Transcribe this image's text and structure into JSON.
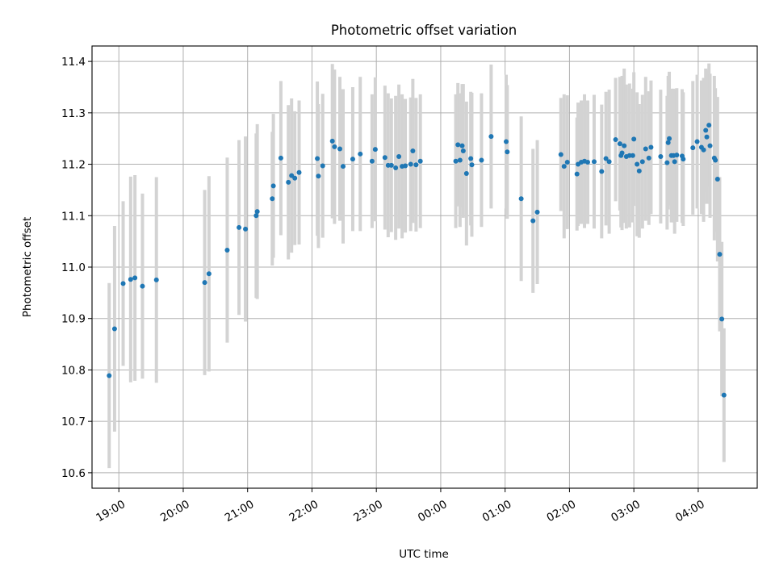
{
  "chart_data": {
    "type": "scatter",
    "title": "Photometric offset variation",
    "xlabel": "UTC time",
    "ylabel": "Photometric offset",
    "x_unit": "UTC",
    "x_axis_start_date": "2000-01-01",
    "xlim": [
      "2000-01-01T18:35",
      "2000-01-02T04:55"
    ],
    "ylim": [
      10.57,
      11.43
    ],
    "xticks": [
      "2000-01-01T19:00",
      "2000-01-01T20:00",
      "2000-01-01T21:00",
      "2000-01-01T22:00",
      "2000-01-01T23:00",
      "2000-01-02T00:00",
      "2000-01-02T01:00",
      "2000-01-02T02:00",
      "2000-01-02T03:00",
      "2000-01-02T04:00"
    ],
    "xtick_labels": [
      "19:00",
      "20:00",
      "21:00",
      "22:00",
      "23:00",
      "00:00",
      "01:00",
      "02:00",
      "03:00",
      "04:00"
    ],
    "yticks": [
      10.6,
      10.7,
      10.8,
      10.9,
      11.0,
      11.1,
      11.2,
      11.3,
      11.4
    ],
    "ytick_labels": [
      "10.6",
      "10.7",
      "10.8",
      "10.9",
      "11.0",
      "11.1",
      "11.2",
      "11.3",
      "11.4"
    ],
    "grid": true,
    "marker_color": "#1f77b4",
    "errorbar_color": "#d3d3d3",
    "points": [
      [
        "18:51",
        10.789,
        0.18
      ],
      [
        "18:56",
        10.88,
        0.2
      ],
      [
        "19:04",
        10.968,
        0.16
      ],
      [
        "19:11",
        10.976,
        0.2
      ],
      [
        "19:15",
        10.979,
        0.2
      ],
      [
        "19:22",
        10.963,
        0.18
      ],
      [
        "19:35",
        10.975,
        0.2
      ],
      [
        "20:20",
        10.97,
        0.18
      ],
      [
        "20:24",
        10.987,
        0.19
      ],
      [
        "20:41",
        11.033,
        0.18
      ],
      [
        "20:52",
        11.077,
        0.17
      ],
      [
        "20:58",
        11.074,
        0.18
      ],
      [
        "21:08",
        11.1,
        0.16
      ],
      [
        "21:09",
        11.108,
        0.17
      ],
      [
        "21:23",
        11.133,
        0.13
      ],
      [
        "21:24",
        11.158,
        0.14
      ],
      [
        "21:31",
        11.212,
        0.15
      ],
      [
        "21:38",
        11.165,
        0.15
      ],
      [
        "21:41",
        11.178,
        0.15
      ],
      [
        "21:44",
        11.173,
        0.13
      ],
      [
        "21:48",
        11.184,
        0.14
      ],
      [
        "22:05",
        11.211,
        0.15
      ],
      [
        "22:06",
        11.177,
        0.14
      ],
      [
        "22:10",
        11.197,
        0.14
      ],
      [
        "22:19",
        11.245,
        0.15
      ],
      [
        "22:21",
        11.234,
        0.15
      ],
      [
        "22:26",
        11.23,
        0.14
      ],
      [
        "22:29",
        11.196,
        0.15
      ],
      [
        "22:38",
        11.21,
        0.14
      ],
      [
        "22:45",
        11.22,
        0.15
      ],
      [
        "22:56",
        11.206,
        0.13
      ],
      [
        "22:59",
        11.229,
        0.14
      ],
      [
        "23:08",
        11.213,
        0.14
      ],
      [
        "23:11",
        11.198,
        0.14
      ],
      [
        "23:14",
        11.198,
        0.13
      ],
      [
        "23:18",
        11.193,
        0.14
      ],
      [
        "23:21",
        11.215,
        0.14
      ],
      [
        "23:24",
        11.196,
        0.14
      ],
      [
        "23:27",
        11.197,
        0.13
      ],
      [
        "23:32",
        11.2,
        0.13
      ],
      [
        "23:34",
        11.226,
        0.14
      ],
      [
        "23:37",
        11.199,
        0.13
      ],
      [
        "23:41",
        11.206,
        0.13
      ],
      [
        "00:14",
        11.206,
        0.13
      ],
      [
        "00:16",
        11.238,
        0.12
      ],
      [
        "00:18",
        11.208,
        0.13
      ],
      [
        "00:20",
        11.236,
        0.12
      ],
      [
        "00:21",
        11.226,
        0.13
      ],
      [
        "00:24",
        11.182,
        0.14
      ],
      [
        "00:28",
        11.211,
        0.13
      ],
      [
        "00:29",
        11.199,
        0.14
      ],
      [
        "00:38",
        11.208,
        0.13
      ],
      [
        "00:47",
        11.254,
        0.14
      ],
      [
        "01:01",
        11.244,
        0.13
      ],
      [
        "01:02",
        11.224,
        0.13
      ],
      [
        "01:15",
        11.133,
        0.16
      ],
      [
        "01:26",
        11.09,
        0.14
      ],
      [
        "01:30",
        11.107,
        0.14
      ],
      [
        "01:52",
        11.219,
        0.11
      ],
      [
        "01:55",
        11.196,
        0.14
      ],
      [
        "01:58",
        11.204,
        0.13
      ],
      [
        "02:07",
        11.181,
        0.11
      ],
      [
        "02:08",
        11.2,
        0.12
      ],
      [
        "02:11",
        11.204,
        0.12
      ],
      [
        "02:14",
        11.206,
        0.13
      ],
      [
        "02:17",
        11.204,
        0.12
      ],
      [
        "02:23",
        11.205,
        0.13
      ],
      [
        "02:30",
        11.186,
        0.13
      ],
      [
        "02:34",
        11.211,
        0.13
      ],
      [
        "02:37",
        11.205,
        0.14
      ],
      [
        "02:43",
        11.248,
        0.12
      ],
      [
        "02:47",
        11.24,
        0.13
      ],
      [
        "02:48",
        11.217,
        0.14
      ],
      [
        "02:49",
        11.222,
        0.15
      ],
      [
        "02:51",
        11.236,
        0.15
      ],
      [
        "02:53",
        11.215,
        0.14
      ],
      [
        "02:56",
        11.217,
        0.14
      ],
      [
        "02:59",
        11.217,
        0.13
      ],
      [
        "03:00",
        11.249,
        0.13
      ],
      [
        "03:03",
        11.2,
        0.14
      ],
      [
        "03:05",
        11.187,
        0.13
      ],
      [
        "03:08",
        11.205,
        0.13
      ],
      [
        "03:11",
        11.23,
        0.14
      ],
      [
        "03:14",
        11.212,
        0.13
      ],
      [
        "03:16",
        11.233,
        0.13
      ],
      [
        "03:25",
        11.215,
        0.13
      ],
      [
        "03:31",
        11.203,
        0.13
      ],
      [
        "03:32",
        11.242,
        0.13
      ],
      [
        "03:33",
        11.25,
        0.13
      ],
      [
        "03:35",
        11.217,
        0.13
      ],
      [
        "03:37",
        11.217,
        0.13
      ],
      [
        "03:38",
        11.205,
        0.14
      ],
      [
        "03:40",
        11.218,
        0.13
      ],
      [
        "03:45",
        11.216,
        0.13
      ],
      [
        "03:46",
        11.21,
        0.13
      ],
      [
        "03:55",
        11.232,
        0.13
      ],
      [
        "03:59",
        11.244,
        0.13
      ],
      [
        "04:03",
        11.233,
        0.13
      ],
      [
        "04:05",
        11.228,
        0.14
      ],
      [
        "04:07",
        11.266,
        0.12
      ],
      [
        "04:08",
        11.253,
        0.13
      ],
      [
        "04:10",
        11.276,
        0.12
      ],
      [
        "04:11",
        11.236,
        0.14
      ],
      [
        "04:15",
        11.212,
        0.16
      ],
      [
        "04:16",
        11.208,
        0.14
      ],
      [
        "04:18",
        11.171,
        0.16
      ],
      [
        "04:20",
        11.025,
        0.15
      ],
      [
        "04:22",
        10.899,
        0.15
      ],
      [
        "04:24",
        10.751,
        0.13
      ]
    ]
  }
}
